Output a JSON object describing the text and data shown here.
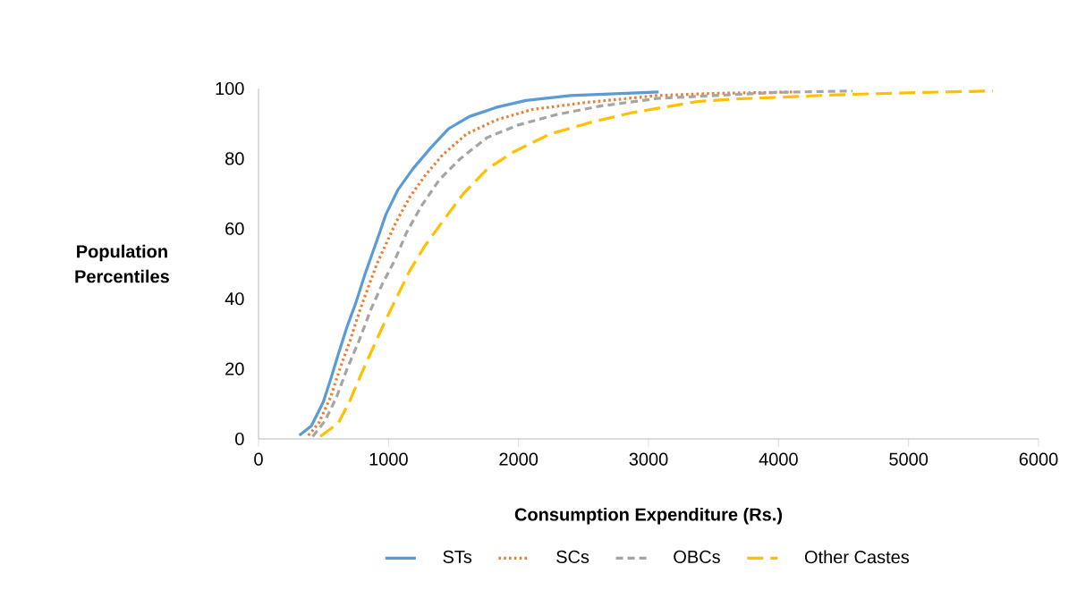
{
  "chart_data": {
    "type": "line",
    "xlabel": "Consumption Expenditure (Rs.)",
    "ylabel": "Population Percentiles",
    "xlim": [
      0,
      6000
    ],
    "xticks": [
      0,
      1000,
      2000,
      3000,
      4000,
      5000,
      6000
    ],
    "ylim": [
      0,
      100
    ],
    "yticks": [
      0,
      20,
      40,
      60,
      80,
      100
    ],
    "grid": false,
    "legend": "bottom",
    "marker": "none",
    "series": [
      {
        "name": "STs",
        "color": "#5b9bd5",
        "line_style": "solid",
        "x": [
          314,
          406,
          498,
          555,
          612,
          681,
          750,
          819,
          876,
          933,
          979,
          1071,
          1186,
          1323,
          1461,
          1622,
          1828,
          2057,
          2401,
          2745,
          3078
        ],
        "values": [
          1,
          3.7,
          10.5,
          17,
          24,
          32,
          39,
          47,
          53,
          59,
          64,
          71,
          77,
          83,
          88.5,
          92,
          94.6,
          96.6,
          98,
          98.5,
          99
        ]
      },
      {
        "name": "SCs",
        "color": "#ed7d31",
        "line_style": "dotted",
        "x": [
          383,
          463,
          555,
          635,
          704,
          773,
          841,
          911,
          979,
          1060,
          1163,
          1278,
          1415,
          1599,
          1828,
          2103,
          2516,
          3069,
          3500,
          4122
        ],
        "values": [
          1,
          4.5,
          12,
          21,
          28,
          36,
          43,
          50,
          55.5,
          62,
          69,
          75,
          81,
          87,
          91,
          94,
          96,
          98,
          98.6,
          99
        ]
      },
      {
        "name": "OBCs",
        "color": "#a5a5a5",
        "line_style": "dashed",
        "x": [
          417,
          509,
          601,
          681,
          773,
          865,
          956,
          1048,
          1140,
          1255,
          1392,
          1553,
          1759,
          1990,
          2287,
          2631,
          3078,
          3516,
          4000,
          4569
        ],
        "values": [
          0.7,
          5,
          12,
          20,
          28,
          37,
          44.5,
          51,
          59,
          66.6,
          74,
          80,
          86,
          89.5,
          92.5,
          95,
          97.2,
          98,
          98.9,
          99.3
        ]
      },
      {
        "name": "Other Castes",
        "color": "#ffc000",
        "line_style": "long dashed",
        "x": [
          475,
          613,
          704,
          796,
          888,
          979,
          1071,
          1163,
          1278,
          1415,
          1576,
          1759,
          1966,
          2241,
          2562,
          2860,
          3080,
          3378,
          3665,
          3950,
          4250,
          4535,
          4823,
          5121,
          5649
        ],
        "values": [
          0.7,
          4.5,
          11,
          19,
          26.6,
          34,
          41,
          48,
          55,
          62,
          70,
          77,
          82,
          87,
          90.4,
          93,
          94.4,
          96.3,
          97,
          97.4,
          97.9,
          98.3,
          98.6,
          98.9,
          99.3
        ]
      }
    ]
  }
}
